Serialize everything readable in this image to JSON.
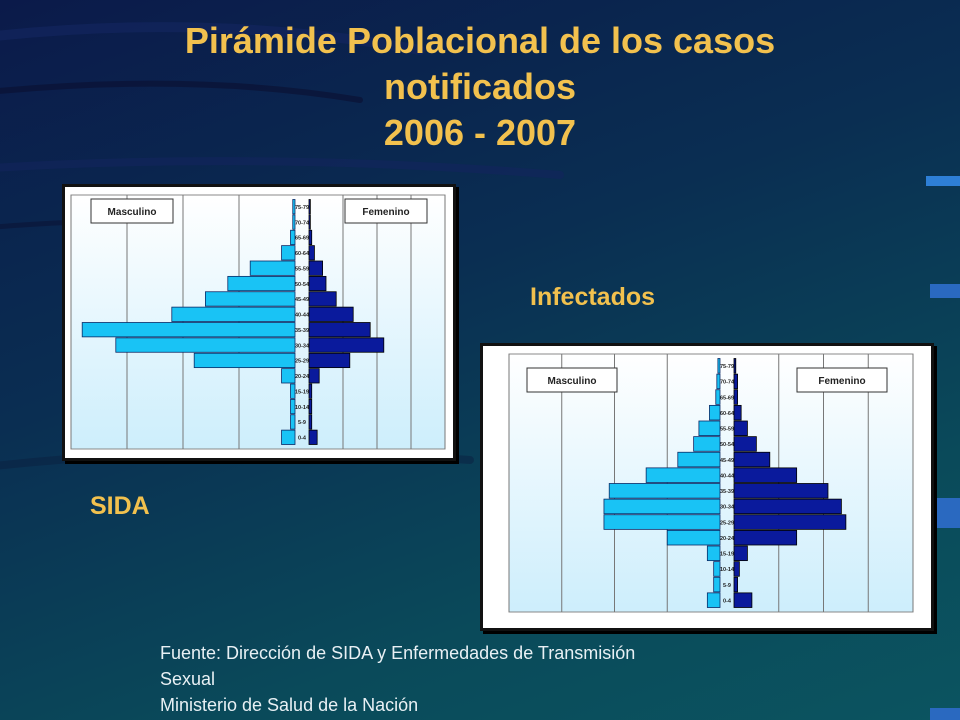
{
  "title": {
    "line1": "Pirámide Poblacional de los casos",
    "line2": "notificados",
    "line3": "2006 - 2007"
  },
  "labels": {
    "sida": "SIDA",
    "infectados": "Infectados"
  },
  "source": {
    "line1": "Fuente: Dirección de SIDA y Enfermedades de Transmisión",
    "line2": "Sexual",
    "line3": "Ministerio de Salud de la Nación"
  },
  "colors": {
    "male": "#19c3f5",
    "female": "#0a1a9c",
    "plot_bg_top": "#ffffff",
    "plot_bg_bottom": "#cdeefc",
    "title": "#f2c14e"
  },
  "chart_data": [
    {
      "type": "bar",
      "name_label": "SIDA",
      "legend_left": "Masculino",
      "legend_right": "Femenino",
      "categories": [
        "75-79",
        "70-74",
        "65-69",
        "60-64",
        "55-59",
        "50-54",
        "45-49",
        "40-44",
        "35-39",
        "30-34",
        "25-29",
        "20-24",
        "15-19",
        "10-14",
        "5-9",
        "0-4"
      ],
      "series": [
        {
          "name": "Masculino",
          "values": [
            0.2,
            0.2,
            0.4,
            1.2,
            4,
            6,
            8,
            11,
            19,
            16,
            9,
            1.2,
            0.4,
            0.4,
            0.4,
            1.2
          ]
        },
        {
          "name": "Femenino",
          "values": [
            0.2,
            0.2,
            0.4,
            0.8,
            2,
            2.5,
            4,
            6.5,
            9,
            11,
            6,
            1.5,
            0.4,
            0.4,
            0.4,
            1.2
          ]
        }
      ],
      "grid": true
    },
    {
      "type": "bar",
      "name_label": "Infectados",
      "legend_left": "Masculino",
      "legend_right": "Femenino",
      "categories": [
        "75-79",
        "70-74",
        "65-69",
        "60-64",
        "55-59",
        "50-54",
        "45-49",
        "40-44",
        "35-39",
        "30-34",
        "25-29",
        "20-24",
        "15-19",
        "10-14",
        "5-9",
        "0-4"
      ],
      "series": [
        {
          "name": "Masculino",
          "values": [
            0.2,
            0.3,
            0.4,
            1,
            2,
            2.5,
            4,
            7,
            10.5,
            11,
            11,
            5,
            1.2,
            0.6,
            0.6,
            1.2
          ]
        },
        {
          "name": "Femenino",
          "values": [
            0.2,
            0.4,
            0.4,
            0.8,
            1.5,
            2.5,
            4,
            7,
            10.5,
            12,
            12.5,
            7,
            1.5,
            0.6,
            0.4,
            2
          ]
        }
      ],
      "grid": true
    }
  ]
}
